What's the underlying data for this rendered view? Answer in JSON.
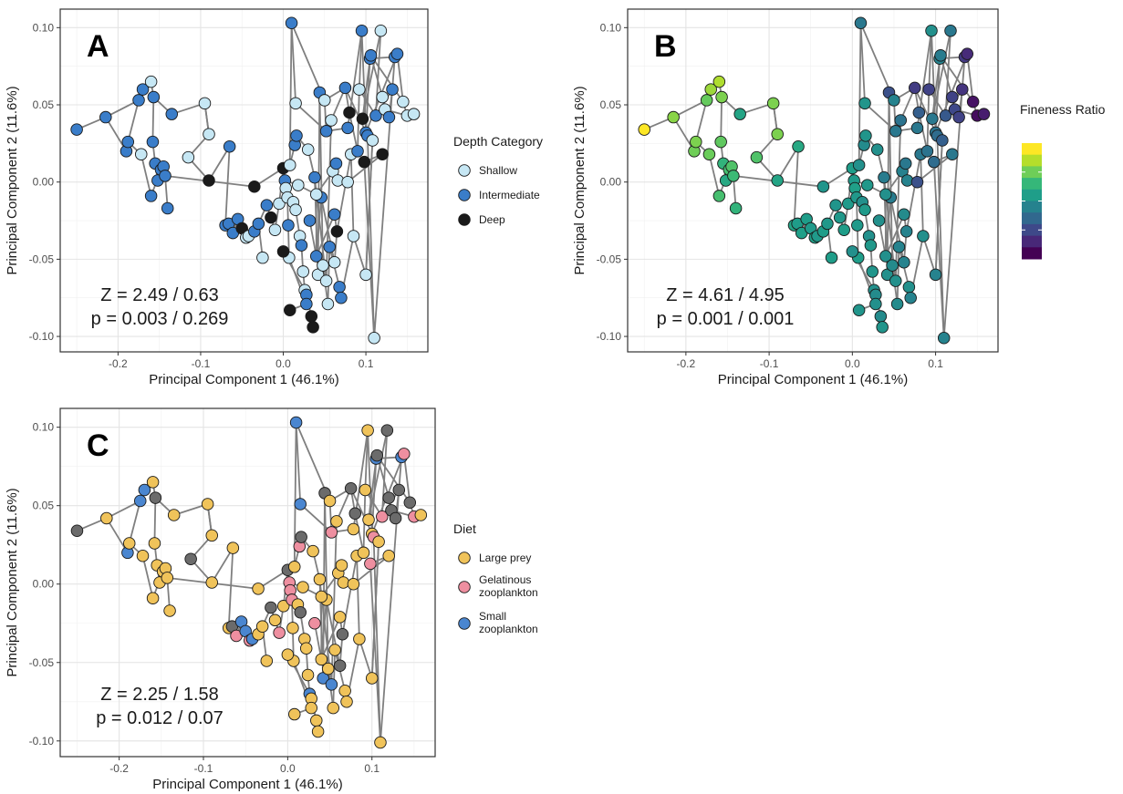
{
  "chart_data": [
    {
      "type": "scatter",
      "panel": "A",
      "xlabel": "Principal Component 1 (46.1%)",
      "ylabel": "Principal Component 2 (11.6%)",
      "xlim": [
        -0.27,
        0.175
      ],
      "ylim": [
        -0.11,
        0.112
      ],
      "xticks": [
        -0.2,
        -0.1,
        0.0,
        0.1
      ],
      "xtick_labels": [
        "-0.2",
        "-0.1",
        "0.0",
        "0.1"
      ],
      "yticks": [
        -0.1,
        -0.05,
        0.0,
        0.05,
        0.1
      ],
      "ytick_labels": [
        "-0.10",
        "-0.05",
        "0.00",
        "0.05",
        "0.10"
      ],
      "grid": true,
      "legend_title": "Depth Category",
      "legend": [
        {
          "label": "Shallow",
          "color": "#c6e7f4"
        },
        {
          "label": "Intermediate",
          "color": "#3a7dc9"
        },
        {
          "label": "Deep",
          "color": "#1a1a1a"
        }
      ],
      "stat_z": "Z = 2.49 / 0.63",
      "stat_p": "p = 0.003 / 0.269",
      "coloring": "category"
    },
    {
      "type": "scatter",
      "panel": "B",
      "xlabel": "Principal Component 1 (46.1%)",
      "ylabel": "Principal Component 2 (11.6%)",
      "xlim": [
        -0.27,
        0.175
      ],
      "ylim": [
        -0.11,
        0.112
      ],
      "xticks": [
        -0.2,
        -0.1,
        0.0,
        0.1
      ],
      "xtick_labels": [
        "-0.2",
        "-0.1",
        "0.0",
        "0.1"
      ],
      "yticks": [
        -0.1,
        -0.05,
        0.0,
        0.05,
        0.1
      ],
      "ytick_labels": [
        "-0.10",
        "-0.05",
        "0.00",
        "0.05",
        "0.10"
      ],
      "grid": true,
      "legend_title": "Fineness Ratio",
      "colorbar": [
        "#fde725",
        "#b5de2b",
        "#6ece58",
        "#35b779",
        "#1f9e89",
        "#26828e",
        "#31688e",
        "#3e4989",
        "#482878",
        "#440154"
      ],
      "stat_z": "Z = 4.61 / 4.95",
      "stat_p": "p = 0.001 / 0.001",
      "coloring": "continuous"
    },
    {
      "type": "scatter",
      "panel": "C",
      "xlabel": "Principal Component 1 (46.1%)",
      "ylabel": "Principal Component 2 (11.6%)",
      "xlim": [
        -0.27,
        0.175
      ],
      "ylim": [
        -0.11,
        0.112
      ],
      "xticks": [
        -0.2,
        -0.1,
        0.0,
        0.1
      ],
      "xtick_labels": [
        "-0.2",
        "-0.1",
        "0.0",
        "0.1"
      ],
      "yticks": [
        -0.1,
        -0.05,
        0.0,
        0.05,
        0.1
      ],
      "ytick_labels": [
        "-0.10",
        "-0.05",
        "0.00",
        "0.05",
        "0.10"
      ],
      "grid": true,
      "legend_title": "Diet",
      "legend": [
        {
          "label": "Large prey",
          "color": "#f0c35a"
        },
        {
          "label": "Gelatinous zooplankton",
          "color": "#ee8fa0"
        },
        {
          "label": "Small zooplankton",
          "color": "#4a86d0"
        }
      ],
      "stat_z": "Z = 2.25 / 1.58",
      "stat_p": "p = 0.012 / 0.07",
      "coloring": "category",
      "extra_colors": {
        "unknown": "#6b6b6b"
      }
    }
  ],
  "points": [
    [
      -0.25,
      0.034
    ],
    [
      -0.215,
      0.042
    ],
    [
      -0.19,
      0.02
    ],
    [
      -0.188,
      0.026
    ],
    [
      -0.175,
      0.053
    ],
    [
      -0.17,
      0.06
    ],
    [
      -0.172,
      0.018
    ],
    [
      -0.16,
      0.065
    ],
    [
      -0.157,
      0.055
    ],
    [
      -0.158,
      0.026
    ],
    [
      -0.155,
      0.012
    ],
    [
      -0.152,
      0.001
    ],
    [
      -0.148,
      0.008
    ],
    [
      -0.145,
      0.01
    ],
    [
      -0.143,
      0.004
    ],
    [
      -0.14,
      -0.017
    ],
    [
      -0.135,
      0.044
    ],
    [
      -0.16,
      -0.009
    ],
    [
      -0.115,
      0.016
    ],
    [
      -0.095,
      0.051
    ],
    [
      -0.09,
      0.031
    ],
    [
      -0.065,
      0.023
    ],
    [
      -0.07,
      -0.028
    ],
    [
      -0.066,
      -0.027
    ],
    [
      -0.061,
      -0.033
    ],
    [
      -0.055,
      -0.024
    ],
    [
      -0.05,
      -0.03
    ],
    [
      -0.045,
      -0.036
    ],
    [
      -0.042,
      -0.035
    ],
    [
      -0.035,
      -0.032
    ],
    [
      -0.03,
      -0.027
    ],
    [
      -0.025,
      -0.049
    ],
    [
      -0.02,
      -0.015
    ],
    [
      -0.015,
      -0.023
    ],
    [
      -0.01,
      -0.031
    ],
    [
      -0.005,
      -0.014
    ],
    [
      0.0,
      0.009
    ],
    [
      0.002,
      0.001
    ],
    [
      0.003,
      -0.004
    ],
    [
      0.005,
      -0.01
    ],
    [
      0.006,
      -0.028
    ],
    [
      0.007,
      -0.049
    ],
    [
      0.008,
      0.011
    ],
    [
      0.01,
      0.103
    ],
    [
      0.012,
      -0.013
    ],
    [
      0.014,
      0.024
    ],
    [
      0.015,
      -0.018
    ],
    [
      0.016,
      0.03
    ],
    [
      0.018,
      -0.002
    ],
    [
      0.02,
      -0.035
    ],
    [
      0.022,
      -0.041
    ],
    [
      0.024,
      -0.058
    ],
    [
      0.026,
      -0.07
    ],
    [
      0.028,
      -0.073
    ],
    [
      0.03,
      0.021
    ],
    [
      0.032,
      -0.025
    ],
    [
      0.034,
      -0.087
    ],
    [
      0.036,
      -0.094
    ],
    [
      0.038,
      0.003
    ],
    [
      0.04,
      -0.048
    ],
    [
      0.042,
      -0.06
    ],
    [
      0.044,
      0.058
    ],
    [
      0.046,
      -0.01
    ],
    [
      0.048,
      -0.054
    ],
    [
      0.05,
      0.053
    ],
    [
      0.052,
      -0.064
    ],
    [
      0.054,
      -0.079
    ],
    [
      0.056,
      -0.042
    ],
    [
      0.058,
      0.04
    ],
    [
      0.06,
      0.007
    ],
    [
      0.062,
      -0.052
    ],
    [
      0.064,
      0.012
    ],
    [
      0.066,
      0.001
    ],
    [
      0.068,
      -0.068
    ],
    [
      0.07,
      -0.075
    ],
    [
      0.075,
      0.061
    ],
    [
      0.078,
      0.035
    ],
    [
      0.08,
      0.045
    ],
    [
      0.082,
      0.018
    ],
    [
      0.085,
      -0.035
    ],
    [
      0.09,
      0.02
    ],
    [
      0.092,
      0.06
    ],
    [
      0.095,
      0.098
    ],
    [
      0.096,
      0.041
    ],
    [
      0.1,
      0.032
    ],
    [
      0.1,
      -0.06
    ],
    [
      0.102,
      0.03
    ],
    [
      0.105,
      0.08
    ],
    [
      0.106,
      0.082
    ],
    [
      0.108,
      0.027
    ],
    [
      0.11,
      -0.101
    ],
    [
      0.112,
      0.043
    ],
    [
      0.118,
      0.098
    ],
    [
      0.12,
      0.055
    ],
    [
      0.123,
      0.047
    ],
    [
      0.128,
      0.042
    ],
    [
      0.132,
      0.06
    ],
    [
      0.135,
      0.081
    ],
    [
      0.138,
      0.083
    ],
    [
      0.145,
      0.052
    ],
    [
      0.15,
      0.043
    ],
    [
      0.158,
      0.044
    ],
    [
      -0.035,
      -0.003
    ],
    [
      0.0,
      -0.045
    ],
    [
      0.028,
      -0.079
    ],
    [
      -0.09,
      0.001
    ],
    [
      0.065,
      -0.032
    ],
    [
      0.04,
      -0.008
    ],
    [
      0.078,
      0.0
    ],
    [
      0.12,
      0.018
    ],
    [
      0.052,
      0.033
    ],
    [
      0.015,
      0.051
    ],
    [
      0.098,
      0.013
    ],
    [
      0.062,
      -0.021
    ],
    [
      0.008,
      -0.083
    ]
  ],
  "edges": [
    [
      0,
      1
    ],
    [
      1,
      2
    ],
    [
      2,
      3
    ],
    [
      3,
      4
    ],
    [
      4,
      5
    ],
    [
      5,
      7
    ],
    [
      7,
      8
    ],
    [
      8,
      9
    ],
    [
      9,
      10
    ],
    [
      10,
      11
    ],
    [
      11,
      12
    ],
    [
      12,
      13
    ],
    [
      13,
      14
    ],
    [
      14,
      15
    ],
    [
      3,
      6
    ],
    [
      6,
      17
    ],
    [
      8,
      16
    ],
    [
      16,
      19
    ],
    [
      19,
      20
    ],
    [
      20,
      18
    ],
    [
      18,
      105
    ],
    [
      105,
      21
    ],
    [
      21,
      22
    ],
    [
      22,
      23
    ],
    [
      23,
      24
    ],
    [
      24,
      25
    ],
    [
      25,
      26
    ],
    [
      26,
      27
    ],
    [
      27,
      28
    ],
    [
      28,
      29
    ],
    [
      29,
      30
    ],
    [
      30,
      31
    ],
    [
      30,
      32
    ],
    [
      32,
      33
    ],
    [
      33,
      34
    ],
    [
      34,
      35
    ],
    [
      35,
      36
    ],
    [
      36,
      37
    ],
    [
      37,
      38
    ],
    [
      38,
      39
    ],
    [
      39,
      40
    ],
    [
      40,
      41
    ],
    [
      41,
      104
    ],
    [
      104,
      114
    ],
    [
      36,
      42
    ],
    [
      42,
      43
    ],
    [
      37,
      44
    ],
    [
      44,
      46
    ],
    [
      46,
      49
    ],
    [
      49,
      50
    ],
    [
      50,
      51
    ],
    [
      51,
      52
    ],
    [
      52,
      53
    ],
    [
      53,
      56
    ],
    [
      56,
      57
    ],
    [
      42,
      45
    ],
    [
      45,
      47
    ],
    [
      47,
      54
    ],
    [
      54,
      58
    ],
    [
      58,
      65
    ],
    [
      65,
      68
    ],
    [
      68,
      75
    ],
    [
      75,
      77
    ],
    [
      77,
      80
    ],
    [
      80,
      81
    ],
    [
      81,
      82
    ],
    [
      82,
      84
    ],
    [
      84,
      87
    ],
    [
      87,
      88
    ],
    [
      88,
      93
    ],
    [
      93,
      94
    ],
    [
      94,
      95
    ],
    [
      95,
      96
    ],
    [
      96,
      97
    ],
    [
      97,
      98
    ],
    [
      98,
      99
    ],
    [
      99,
      100
    ],
    [
      100,
      101
    ],
    [
      81,
      91
    ],
    [
      91,
      92
    ],
    [
      92,
      83
    ],
    [
      43,
      64
    ],
    [
      64,
      75
    ],
    [
      75,
      86
    ],
    [
      86,
      90
    ],
    [
      90,
      96
    ],
    [
      58,
      60
    ],
    [
      60,
      61
    ],
    [
      61,
      63
    ],
    [
      63,
      66
    ],
    [
      66,
      67
    ],
    [
      67,
      73
    ],
    [
      73,
      74
    ],
    [
      74,
      79
    ],
    [
      79,
      85
    ],
    [
      85,
      89
    ],
    [
      55,
      59
    ],
    [
      59,
      62
    ],
    [
      62,
      70
    ],
    [
      70,
      106
    ],
    [
      106,
      78
    ],
    [
      78,
      79
    ],
    [
      59,
      107
    ],
    [
      107,
      69
    ],
    [
      69,
      71
    ],
    [
      71,
      72
    ],
    [
      72,
      108
    ],
    [
      108,
      109
    ],
    [
      109,
      112
    ],
    [
      112,
      90
    ],
    [
      110,
      64
    ],
    [
      110,
      111
    ],
    [
      111,
      43
    ],
    [
      76,
      110
    ],
    [
      76,
      82
    ],
    [
      48,
      37
    ],
    [
      48,
      107
    ],
    [
      113,
      106
    ],
    [
      113,
      59
    ],
    [
      103,
      41
    ],
    [
      103,
      52
    ],
    [
      14,
      102
    ],
    [
      102,
      36
    ],
    [
      19,
      20
    ],
    [
      1,
      4
    ],
    [
      12,
      17
    ],
    [
      88,
      99
    ],
    [
      94,
      100
    ],
    [
      83,
      87
    ],
    [
      85,
      89
    ],
    [
      91,
      96
    ],
    [
      87,
      97
    ],
    [
      84,
      98
    ]
  ],
  "panel_a_groups": [
    1,
    1,
    1,
    1,
    1,
    1,
    0,
    0,
    1,
    1,
    1,
    1,
    1,
    1,
    1,
    1,
    1,
    1,
    0,
    0,
    0,
    1,
    1,
    1,
    1,
    1,
    2,
    0,
    0,
    1,
    1,
    0,
    1,
    2,
    0,
    0,
    2,
    1,
    0,
    0,
    1,
    0,
    0,
    1,
    0,
    1,
    0,
    1,
    0,
    0,
    1,
    0,
    0,
    1,
    0,
    1,
    2,
    2,
    1,
    1,
    0,
    1,
    1,
    0,
    0,
    0,
    0,
    1,
    0,
    0,
    0,
    1,
    0,
    1,
    1,
    1,
    1,
    2,
    0,
    0,
    1,
    0,
    1,
    2,
    1,
    0,
    1,
    1,
    1,
    0,
    0,
    1,
    0,
    0,
    0,
    1,
    1,
    1,
    1,
    0,
    0,
    0,
    2,
    2,
    1,
    2,
    2,
    0,
    0,
    2,
    1,
    0,
    2,
    1,
    2
  ],
  "panel_b_values": [
    0.0,
    0.18,
    0.22,
    0.2,
    0.24,
    0.15,
    0.23,
    0.12,
    0.2,
    0.25,
    0.35,
    0.4,
    0.3,
    0.28,
    0.32,
    0.35,
    0.42,
    0.3,
    0.28,
    0.2,
    0.2,
    0.4,
    0.42,
    0.45,
    0.44,
    0.45,
    0.46,
    0.44,
    0.46,
    0.45,
    0.47,
    0.45,
    0.48,
    0.47,
    0.45,
    0.46,
    0.45,
    0.46,
    0.44,
    0.47,
    0.46,
    0.45,
    0.5,
    0.6,
    0.5,
    0.52,
    0.46,
    0.48,
    0.47,
    0.5,
    0.47,
    0.48,
    0.5,
    0.52,
    0.5,
    0.5,
    0.52,
    0.48,
    0.58,
    0.5,
    0.5,
    0.75,
    0.58,
    0.52,
    0.55,
    0.5,
    0.52,
    0.55,
    0.62,
    0.56,
    0.55,
    0.6,
    0.55,
    0.5,
    0.55,
    0.82,
    0.6,
    0.7,
    0.6,
    0.5,
    0.62,
    0.8,
    0.5,
    0.6,
    0.62,
    0.55,
    0.65,
    0.55,
    0.58,
    0.7,
    0.55,
    0.72,
    0.6,
    0.8,
    0.78,
    0.8,
    0.85,
    0.83,
    0.88,
    0.95,
    0.97,
    0.92,
    0.48,
    0.5,
    0.5,
    0.42,
    0.55,
    0.5,
    0.75,
    0.6,
    0.6,
    0.48,
    0.65,
    0.52,
    0.48
  ],
  "panel_c_groups": [
    3,
    0,
    2,
    0,
    2,
    2,
    0,
    0,
    3,
    0,
    0,
    0,
    0,
    0,
    0,
    0,
    0,
    0,
    3,
    0,
    0,
    0,
    0,
    3,
    1,
    2,
    2,
    1,
    2,
    0,
    0,
    0,
    3,
    0,
    1,
    0,
    3,
    1,
    1,
    1,
    0,
    0,
    0,
    2,
    0,
    1,
    3,
    3,
    0,
    0,
    0,
    0,
    2,
    0,
    0,
    1,
    0,
    0,
    0,
    0,
    2,
    3,
    0,
    0,
    0,
    2,
    0,
    0,
    0,
    0,
    3,
    0,
    0,
    0,
    0,
    3,
    0,
    3,
    0,
    0,
    0,
    0,
    0,
    0,
    0,
    0,
    1,
    2,
    3,
    0,
    0,
    1,
    3,
    3,
    3,
    3,
    3,
    2,
    1,
    3,
    1,
    0,
    0,
    0,
    0,
    0,
    3,
    0,
    0,
    0,
    1,
    2,
    1,
    0,
    0
  ]
}
